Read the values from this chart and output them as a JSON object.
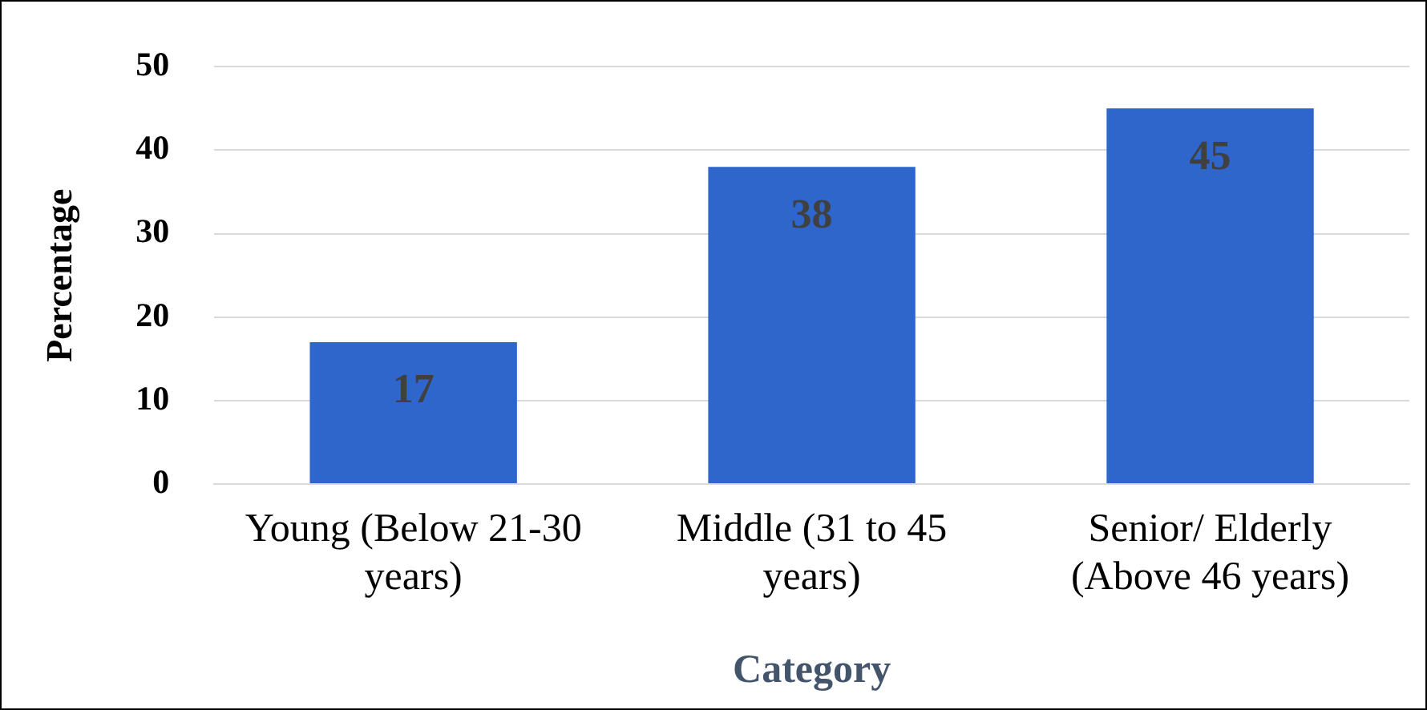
{
  "chart_data": {
    "type": "bar",
    "xlabel": "Category",
    "ylabel": "Percentage",
    "categories": [
      "Young (Below 21-30 years)",
      "Middle (31 to 45 years)",
      "Senior/ Elderly (Above 46 years)"
    ],
    "values": [
      17,
      38,
      45
    ],
    "color": "#2f66cc",
    "ylim": [
      0,
      50
    ],
    "yticks": [
      0,
      10,
      20,
      30,
      40,
      50
    ],
    "grid": "y",
    "data_labels": true,
    "legend": false
  }
}
